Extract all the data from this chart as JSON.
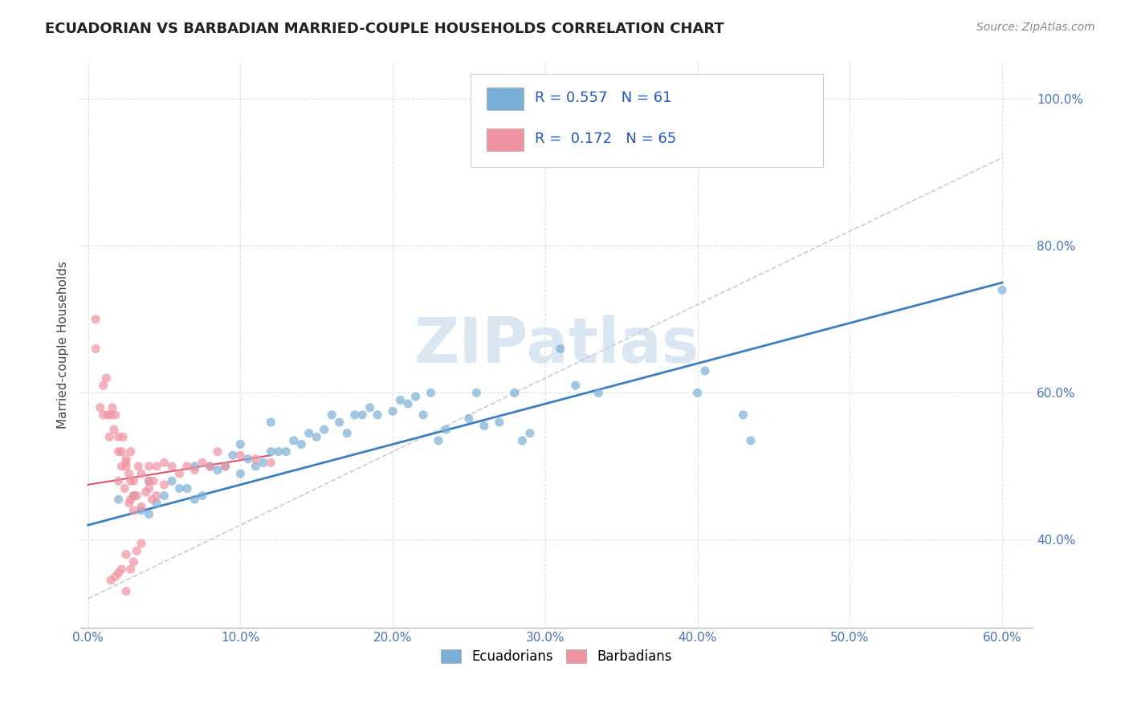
{
  "title": "ECUADORIAN VS BARBADIAN MARRIED-COUPLE HOUSEHOLDS CORRELATION CHART",
  "source": "Source: ZipAtlas.com",
  "xlabel_ticks": [
    "0.0%",
    "10.0%",
    "20.0%",
    "30.0%",
    "40.0%",
    "50.0%",
    "60.0%"
  ],
  "ylabel_ticks": [
    "40.0%",
    "60.0%",
    "80.0%",
    "100.0%"
  ],
  "xlim": [
    -0.5,
    62.0
  ],
  "ylim": [
    28.0,
    105.0
  ],
  "legend_entries": [
    {
      "label": "R = 0.557   N = 61",
      "facecolor": "#aec6e8"
    },
    {
      "label": "R =  0.172   N = 65",
      "facecolor": "#f4b8c1"
    }
  ],
  "legend_bottom": [
    "Ecuadorians",
    "Barbadians"
  ],
  "legend_bottom_colors": [
    "#aec6e8",
    "#f4b8c1"
  ],
  "watermark": "ZIPatlas",
  "blue_scatter": [
    [
      2.0,
      45.5
    ],
    [
      3.0,
      46.0
    ],
    [
      3.5,
      44.0
    ],
    [
      4.0,
      43.5
    ],
    [
      4.0,
      48.0
    ],
    [
      4.5,
      45.0
    ],
    [
      5.0,
      46.0
    ],
    [
      5.5,
      48.0
    ],
    [
      6.0,
      47.0
    ],
    [
      6.5,
      47.0
    ],
    [
      7.0,
      45.5
    ],
    [
      7.0,
      50.0
    ],
    [
      7.5,
      46.0
    ],
    [
      8.0,
      50.0
    ],
    [
      8.5,
      49.5
    ],
    [
      9.0,
      50.0
    ],
    [
      9.5,
      51.5
    ],
    [
      10.0,
      49.0
    ],
    [
      10.0,
      53.0
    ],
    [
      10.5,
      51.0
    ],
    [
      11.0,
      50.0
    ],
    [
      11.5,
      50.5
    ],
    [
      12.0,
      52.0
    ],
    [
      12.0,
      56.0
    ],
    [
      12.5,
      52.0
    ],
    [
      13.0,
      52.0
    ],
    [
      13.5,
      53.5
    ],
    [
      14.0,
      53.0
    ],
    [
      14.5,
      54.5
    ],
    [
      15.0,
      54.0
    ],
    [
      15.5,
      55.0
    ],
    [
      16.0,
      57.0
    ],
    [
      16.5,
      56.0
    ],
    [
      17.0,
      54.5
    ],
    [
      17.5,
      57.0
    ],
    [
      18.0,
      57.0
    ],
    [
      18.5,
      58.0
    ],
    [
      19.0,
      57.0
    ],
    [
      20.0,
      57.5
    ],
    [
      20.5,
      59.0
    ],
    [
      21.0,
      58.5
    ],
    [
      21.5,
      59.5
    ],
    [
      22.0,
      57.0
    ],
    [
      22.5,
      60.0
    ],
    [
      23.0,
      53.5
    ],
    [
      23.5,
      55.0
    ],
    [
      25.0,
      56.5
    ],
    [
      25.5,
      60.0
    ],
    [
      26.0,
      55.5
    ],
    [
      27.0,
      56.0
    ],
    [
      28.0,
      60.0
    ],
    [
      28.5,
      53.5
    ],
    [
      29.0,
      54.5
    ],
    [
      31.0,
      66.0
    ],
    [
      32.0,
      61.0
    ],
    [
      33.5,
      60.0
    ],
    [
      40.0,
      60.0
    ],
    [
      40.5,
      63.0
    ],
    [
      43.0,
      57.0
    ],
    [
      43.5,
      53.5
    ],
    [
      60.0,
      74.0
    ]
  ],
  "pink_scatter": [
    [
      0.5,
      66.0
    ],
    [
      0.5,
      70.0
    ],
    [
      0.8,
      58.0
    ],
    [
      1.0,
      57.0
    ],
    [
      1.0,
      61.0
    ],
    [
      1.2,
      62.0
    ],
    [
      1.3,
      57.0
    ],
    [
      1.4,
      54.0
    ],
    [
      1.5,
      57.0
    ],
    [
      1.6,
      58.0
    ],
    [
      1.7,
      55.0
    ],
    [
      1.8,
      57.0
    ],
    [
      2.0,
      48.0
    ],
    [
      2.0,
      52.0
    ],
    [
      2.0,
      54.0
    ],
    [
      2.2,
      50.0
    ],
    [
      2.2,
      52.0
    ],
    [
      2.3,
      54.0
    ],
    [
      2.4,
      47.0
    ],
    [
      2.5,
      50.0
    ],
    [
      2.5,
      50.5
    ],
    [
      2.5,
      51.0
    ],
    [
      2.7,
      45.0
    ],
    [
      2.7,
      49.0
    ],
    [
      2.8,
      45.5
    ],
    [
      2.8,
      48.0
    ],
    [
      2.8,
      52.0
    ],
    [
      3.0,
      44.0
    ],
    [
      3.0,
      46.0
    ],
    [
      3.0,
      48.0
    ],
    [
      3.2,
      46.0
    ],
    [
      3.3,
      50.0
    ],
    [
      3.5,
      44.5
    ],
    [
      3.5,
      49.0
    ],
    [
      3.8,
      46.5
    ],
    [
      4.0,
      47.0
    ],
    [
      4.0,
      48.0
    ],
    [
      4.0,
      50.0
    ],
    [
      4.2,
      45.5
    ],
    [
      4.3,
      48.0
    ],
    [
      4.5,
      46.0
    ],
    [
      4.5,
      50.0
    ],
    [
      5.0,
      47.5
    ],
    [
      5.0,
      50.5
    ],
    [
      5.5,
      50.0
    ],
    [
      6.0,
      49.0
    ],
    [
      6.5,
      50.0
    ],
    [
      7.0,
      49.5
    ],
    [
      7.5,
      50.5
    ],
    [
      8.0,
      50.0
    ],
    [
      8.5,
      52.0
    ],
    [
      9.0,
      50.0
    ],
    [
      10.0,
      51.5
    ],
    [
      11.0,
      51.0
    ],
    [
      12.0,
      50.5
    ],
    [
      2.5,
      38.0
    ],
    [
      2.8,
      36.0
    ],
    [
      3.0,
      37.0
    ],
    [
      3.2,
      38.5
    ],
    [
      3.5,
      39.5
    ],
    [
      1.5,
      34.5
    ],
    [
      1.8,
      35.0
    ],
    [
      2.0,
      35.5
    ],
    [
      2.2,
      36.0
    ],
    [
      2.5,
      33.0
    ]
  ],
  "blue_line": {
    "x": [
      0.0,
      60.0
    ],
    "y": [
      42.0,
      75.0
    ]
  },
  "pink_line": {
    "x": [
      0.0,
      12.0
    ],
    "y": [
      47.5,
      51.5
    ]
  },
  "diagonal_line": {
    "x": [
      0.0,
      60.0
    ],
    "y": [
      32.0,
      92.0
    ]
  },
  "scatter_alpha": 0.7,
  "scatter_size": 65,
  "blue_color": "#7ab0d8",
  "pink_color": "#f093a0",
  "blue_line_color": "#3a7fc1",
  "pink_line_color": "#e05070",
  "diagonal_color": "#cccccc",
  "background_color": "#ffffff",
  "grid_color": "#e0e0e0"
}
